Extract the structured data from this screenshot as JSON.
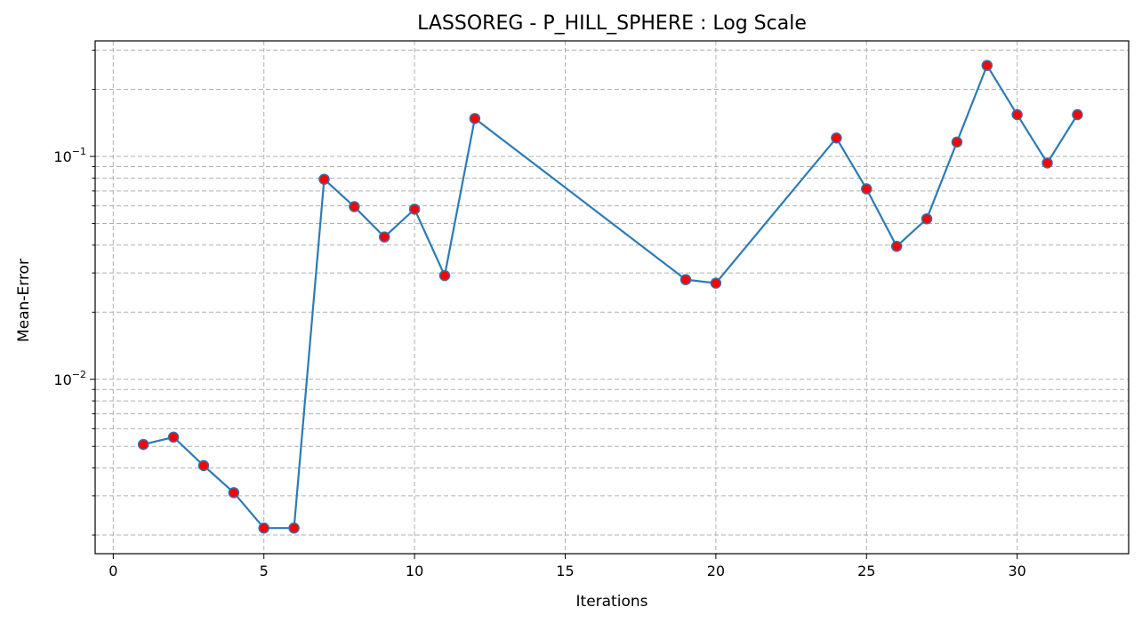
{
  "chart_data": {
    "type": "line",
    "title": "LASSOREG - P_HILL_SPHERE : Log Scale",
    "xlabel": "Iterations",
    "ylabel": "Mean-Error",
    "yscale": "log",
    "xlim": [
      -0.6,
      33.7
    ],
    "ylim": [
      0.00165,
      0.33
    ],
    "x_ticks": [
      0,
      5,
      10,
      15,
      20,
      25,
      30
    ],
    "y_major_ticks": [
      {
        "value": 0.01,
        "base": "10",
        "exponent": "−2"
      },
      {
        "value": 0.1,
        "base": "10",
        "exponent": "−1"
      }
    ],
    "y_minor_gridlines": [
      0.002,
      0.003,
      0.004,
      0.005,
      0.006,
      0.007,
      0.008,
      0.009,
      0.02,
      0.03,
      0.04,
      0.05,
      0.06,
      0.07,
      0.08,
      0.09,
      0.2,
      0.3
    ],
    "grid": true,
    "line_color": "#2c7bb6",
    "marker_face_color": "#ff0000",
    "marker_edge_color": "#3b6ea5",
    "series": [
      {
        "x": [
          1,
          2,
          3,
          4,
          5,
          6,
          7,
          8,
          9,
          10,
          11,
          12,
          19,
          20,
          24,
          25,
          26,
          27,
          28,
          29,
          30,
          31,
          32
        ],
        "values": [
          0.0051,
          0.0055,
          0.0041,
          0.0031,
          0.00215,
          0.00215,
          0.079,
          0.0595,
          0.0435,
          0.058,
          0.0292,
          0.148,
          0.028,
          0.027,
          0.121,
          0.0715,
          0.0395,
          0.0525,
          0.116,
          0.256,
          0.154,
          0.0935,
          0.154
        ]
      }
    ]
  }
}
